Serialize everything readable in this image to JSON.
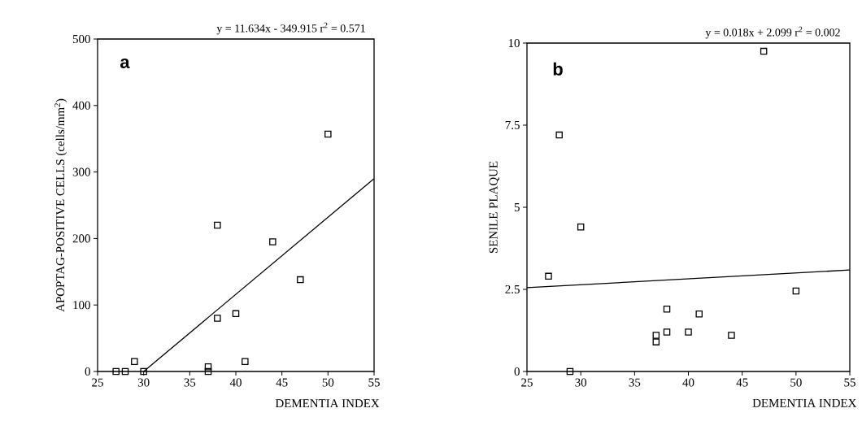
{
  "chart_data": [
    {
      "type": "scatter",
      "title": "y = 11.634x - 349.915  r$^{2}$ = 0.571",
      "xlabel": "DEMENTIA  INDEX",
      "ylabel": "APOPTAG-POSITIVE CELLS (cells/mm$^{2}$)",
      "annotations": [
        "a"
      ],
      "xlim": [
        25,
        55
      ],
      "ylim": [
        0,
        500
      ],
      "xticks": [
        25,
        30,
        35,
        40,
        45,
        50,
        55
      ],
      "yticks": [
        0,
        100,
        200,
        300,
        400,
        500
      ],
      "series": [
        {
          "marker": "square",
          "color": "#000000",
          "x": [
            27,
            28,
            29,
            30,
            37,
            37,
            38,
            38,
            40,
            41,
            44,
            47,
            50
          ],
          "values": [
            0,
            0,
            15,
            0,
            7,
            0,
            80,
            220,
            87,
            15,
            195,
            138,
            357
          ]
        },
        {
          "type": "line",
          "color": "#000000",
          "x": [
            30,
            55
          ],
          "values": [
            0,
            290
          ]
        }
      ]
    },
    {
      "type": "scatter",
      "title": "y = 0.018x + 2.099  r$^{2}$ = 0.002",
      "xlabel": "DEMENTIA  INDEX",
      "ylabel": "SENILE PLAQUE",
      "annotations": [
        "b"
      ],
      "xlim": [
        25,
        55
      ],
      "ylim": [
        0,
        10
      ],
      "xticks": [
        25,
        30,
        35,
        40,
        45,
        50,
        55
      ],
      "yticks": [
        0,
        2.5,
        5,
        7.5,
        10
      ],
      "series": [
        {
          "marker": "square",
          "color": "#000000",
          "x": [
            27,
            28,
            29,
            30,
            37,
            37,
            38,
            38,
            40,
            41,
            44,
            47,
            50
          ],
          "values": [
            2.9,
            7.2,
            0,
            4.4,
            1.1,
            0.9,
            1.9,
            1.2,
            1.2,
            1.75,
            1.1,
            9.75,
            2.45
          ]
        },
        {
          "type": "line",
          "color": "#000000",
          "x": [
            25,
            55
          ],
          "values": [
            2.55,
            3.09
          ]
        }
      ]
    }
  ]
}
